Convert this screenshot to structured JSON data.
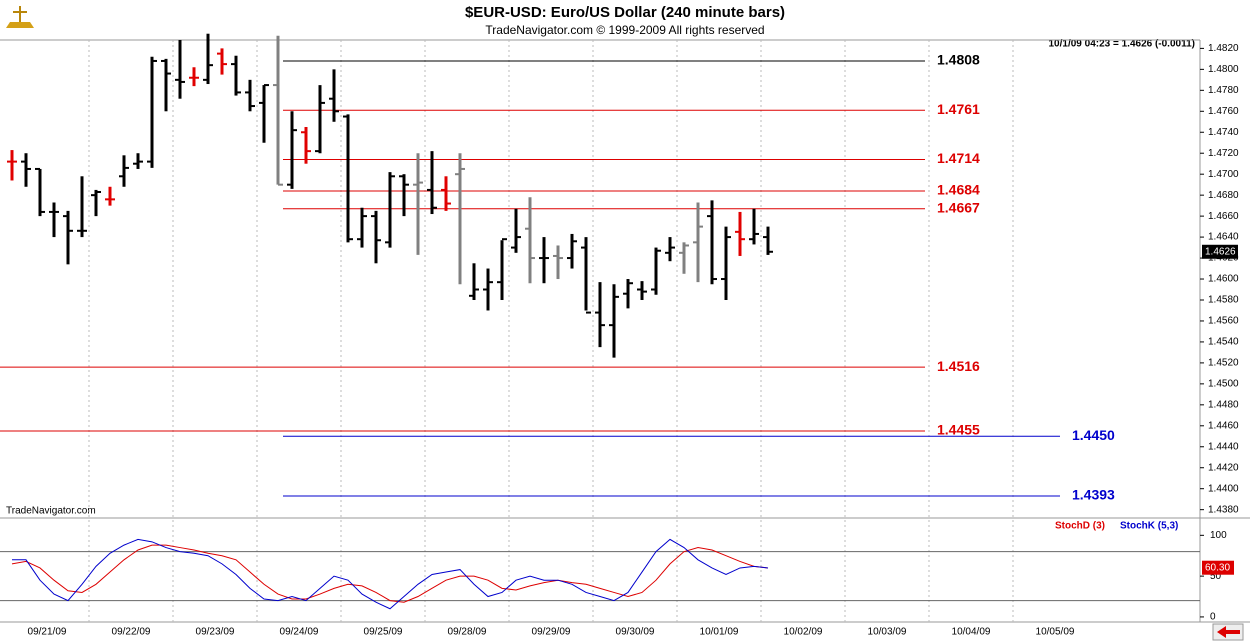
{
  "chart_data": [
    {
      "type": "ohlc",
      "title": "$EUR-USD:  Euro/US Dollar  (240 minute bars)",
      "subtitle": "TradeNavigator.com © 1999-2009 All rights reserved",
      "annotation": "10/1/09 04:23 = 1.4626 (-0.0011)",
      "watermark": "TradeNavigator.com",
      "date_labels": [
        "09/21/09",
        "09/22/09",
        "09/23/09",
        "09/24/09",
        "09/25/09",
        "09/28/09",
        "09/29/09",
        "09/30/09",
        "10/01/09",
        "10/02/09",
        "10/03/09",
        "10/04/09",
        "10/05/09"
      ],
      "high": [
        1.4723,
        1.472,
        1.4705,
        1.4673,
        1.4665,
        1.4698,
        1.4685,
        1.4688,
        1.4718,
        1.472,
        1.4812,
        1.481,
        1.4828,
        1.4802,
        1.4834,
        1.482,
        1.4813,
        1.479,
        1.4785,
        1.4832,
        1.476,
        1.4745,
        1.4785,
        1.48,
        1.4757,
        1.4668,
        1.4665,
        1.4702,
        1.47,
        1.472,
        1.4722,
        1.4698,
        1.472,
        1.4615,
        1.461,
        1.4637,
        1.4667,
        1.4678,
        1.464,
        1.4632,
        1.4643,
        1.464,
        1.4597,
        1.4595,
        1.46,
        1.4598,
        1.463,
        1.464,
        1.4635,
        1.4673,
        1.4675,
        1.465,
        1.4664,
        1.4667,
        1.465
      ],
      "low": [
        1.4694,
        1.4688,
        1.466,
        1.464,
        1.4614,
        1.464,
        1.466,
        1.467,
        1.4688,
        1.4705,
        1.4706,
        1.476,
        1.4772,
        1.4784,
        1.4786,
        1.4795,
        1.4775,
        1.476,
        1.473,
        1.469,
        1.4686,
        1.471,
        1.472,
        1.475,
        1.4635,
        1.463,
        1.4615,
        1.463,
        1.466,
        1.4623,
        1.4662,
        1.4665,
        1.4595,
        1.458,
        1.457,
        1.458,
        1.4625,
        1.4596,
        1.4596,
        1.46,
        1.461,
        1.457,
        1.4535,
        1.4525,
        1.4572,
        1.458,
        1.4585,
        1.4617,
        1.4605,
        1.4597,
        1.4595,
        1.458,
        1.4622,
        1.4633,
        1.4623
      ],
      "open": [
        1.4712,
        1.4712,
        1.4705,
        1.4664,
        1.466,
        1.4646,
        1.468,
        1.4676,
        1.4698,
        1.471,
        1.4712,
        1.4808,
        1.479,
        1.4792,
        1.479,
        1.4815,
        1.4805,
        1.4778,
        1.4768,
        1.4785,
        1.469,
        1.474,
        1.4722,
        1.4772,
        1.4755,
        1.4638,
        1.466,
        1.4635,
        1.4698,
        1.469,
        1.4685,
        1.4685,
        1.47,
        1.4584,
        1.459,
        1.4597,
        1.463,
        1.4648,
        1.462,
        1.4622,
        1.462,
        1.463,
        1.4568,
        1.4556,
        1.4586,
        1.459,
        1.459,
        1.4625,
        1.4625,
        1.4635,
        1.466,
        1.46,
        1.4645,
        1.4638,
        1.464
      ],
      "close": [
        1.4712,
        1.4705,
        1.4664,
        1.4664,
        1.4646,
        1.4646,
        1.4683,
        1.4676,
        1.4706,
        1.4712,
        1.4808,
        1.4796,
        1.4788,
        1.4792,
        1.4804,
        1.4805,
        1.4778,
        1.4765,
        1.4785,
        1.469,
        1.4742,
        1.4722,
        1.4768,
        1.476,
        1.4638,
        1.466,
        1.4637,
        1.4698,
        1.469,
        1.4692,
        1.4668,
        1.4672,
        1.4705,
        1.459,
        1.4597,
        1.4638,
        1.464,
        1.462,
        1.462,
        1.462,
        1.4636,
        1.4568,
        1.4556,
        1.4583,
        1.4596,
        1.4588,
        1.4627,
        1.463,
        1.4632,
        1.465,
        1.46,
        1.464,
        1.4638,
        1.4643,
        1.4626
      ],
      "bar_colors": [
        "#e00000",
        "#000000",
        "#000000",
        "#000000",
        "#000000",
        "#000000",
        "#000000",
        "#e00000",
        "#000000",
        "#000000",
        "#000000",
        "#000000",
        "#000000",
        "#e00000",
        "#000000",
        "#e00000",
        "#000000",
        "#000000",
        "#000000",
        "#808080",
        "#000000",
        "#e00000",
        "#000000",
        "#000000",
        "#000000",
        "#000000",
        "#000000",
        "#000000",
        "#000000",
        "#808080",
        "#000000",
        "#e00000",
        "#808080",
        "#000000",
        "#000000",
        "#000000",
        "#000000",
        "#808080",
        "#000000",
        "#808080",
        "#000000",
        "#000000",
        "#000000",
        "#000000",
        "#000000",
        "#000000",
        "#000000",
        "#000000",
        "#808080",
        "#808080",
        "#000000",
        "#000000",
        "#e00000",
        "#000000",
        "#000000"
      ],
      "levels": [
        {
          "value": 1.4808,
          "color": "#000000"
        },
        {
          "value": 1.4761,
          "color": "#dd0000"
        },
        {
          "value": 1.4714,
          "color": "#dd0000"
        },
        {
          "value": 1.4684,
          "color": "#dd0000"
        },
        {
          "value": 1.4667,
          "color": "#dd0000"
        },
        {
          "value": 1.4516,
          "color": "#dd0000"
        },
        {
          "value": 1.4455,
          "color": "#dd0000"
        },
        {
          "value": 1.445,
          "label": "1.4450",
          "color": "#0000cc"
        },
        {
          "value": 1.4393,
          "color": "#0000cc"
        }
      ],
      "last_price": 1.4626,
      "ylim": [
        1.4373,
        1.4828
      ],
      "yticks": [
        {
          "value": 1.438,
          "label": "1.4380"
        },
        {
          "value": 1.44,
          "label": "1.4400"
        },
        {
          "value": 1.442,
          "label": "1.4420"
        },
        {
          "value": 1.444,
          "label": "1.4440"
        },
        {
          "value": 1.446,
          "label": "1.4460"
        },
        {
          "value": 1.448,
          "label": "1.4480"
        },
        {
          "value": 1.45,
          "label": "1.4500"
        },
        {
          "value": 1.452,
          "label": "1.4520"
        },
        {
          "value": 1.454,
          "label": "1.4540"
        },
        {
          "value": 1.456,
          "label": "1.4560"
        },
        {
          "value": 1.458,
          "label": "1.4580"
        },
        {
          "value": 1.46,
          "label": "1.4600"
        },
        {
          "value": 1.462,
          "label": "1.4620"
        },
        {
          "value": 1.464,
          "label": "1.4640"
        },
        {
          "value": 1.466,
          "label": "1.4660"
        },
        {
          "value": 1.468,
          "label": "1.4680"
        },
        {
          "value": 1.47,
          "label": "1.4700"
        },
        {
          "value": 1.472,
          "label": "1.4720"
        },
        {
          "value": 1.474,
          "label": "1.4740"
        },
        {
          "value": 1.476,
          "label": "1.4760"
        },
        {
          "value": 1.478,
          "label": "1.4780"
        },
        {
          "value": 1.48,
          "label": "1.4800"
        },
        {
          "value": 1.482,
          "label": "1.4820"
        }
      ]
    },
    {
      "type": "line",
      "series": [
        {
          "name": "StochD (3)",
          "color": "#dd0000",
          "values": [
            65,
            68,
            60,
            45,
            32,
            30,
            40,
            55,
            70,
            82,
            88,
            88,
            85,
            82,
            78,
            75,
            70,
            55,
            40,
            28,
            22,
            22,
            28,
            35,
            40,
            38,
            30,
            20,
            18,
            25,
            35,
            45,
            50,
            50,
            45,
            35,
            33,
            38,
            42,
            45,
            42,
            40,
            35,
            30,
            25,
            30,
            45,
            65,
            80,
            85,
            82,
            75,
            68,
            62,
            60
          ]
        },
        {
          "name": "StochK (5,3)",
          "color": "#0000cc",
          "values": [
            70,
            70,
            45,
            28,
            20,
            40,
            62,
            78,
            88,
            95,
            92,
            85,
            80,
            78,
            75,
            65,
            52,
            35,
            22,
            20,
            25,
            20,
            35,
            50,
            45,
            28,
            18,
            10,
            25,
            40,
            52,
            55,
            58,
            40,
            25,
            30,
            45,
            50,
            45,
            45,
            40,
            30,
            25,
            20,
            30,
            55,
            80,
            95,
            85,
            70,
            60,
            52,
            60,
            62,
            60
          ]
        }
      ],
      "last_value": {
        "value": 60.3,
        "label": "60.30"
      },
      "levels": [
        20,
        80
      ],
      "ylim": [
        -5,
        120
      ],
      "yticks": [
        0,
        50,
        100
      ]
    }
  ]
}
